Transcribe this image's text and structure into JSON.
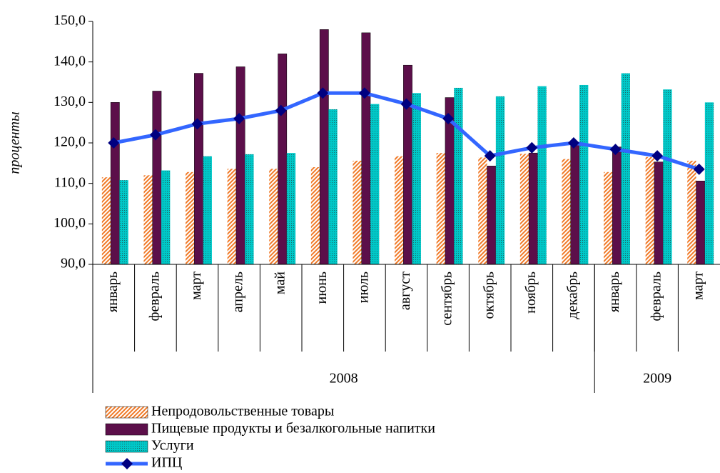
{
  "chart_data": {
    "type": "bar",
    "ylabel": "проценты",
    "categories": [
      "январь",
      "февраль",
      "март",
      "апрель",
      "май",
      "июнь",
      "июль",
      "август",
      "сентябрь",
      "октябрь",
      "ноябрь",
      "декабрь",
      "январь",
      "февраль",
      "март"
    ],
    "year_groups": [
      {
        "name": "2008",
        "span": 12
      },
      {
        "name": "2009",
        "span": 3
      }
    ],
    "series": [
      {
        "name": "Непродовольственные товары",
        "type": "bar",
        "pattern": "hatch",
        "color": "#f07a28",
        "values": [
          111.5,
          112,
          112.8,
          113.6,
          113.6,
          114,
          115.6,
          116.7,
          117.5,
          116.4,
          117.3,
          116,
          112.8,
          116.5,
          115.6
        ]
      },
      {
        "name": "Пищевые продукты и безалкогольные напитки",
        "type": "bar",
        "pattern": "solid",
        "color": "#5c0f4a",
        "values": [
          130,
          132.8,
          137.2,
          138.8,
          142,
          148,
          147.2,
          139.2,
          131.2,
          114.3,
          117.5,
          120,
          119,
          115.3,
          110.6
        ]
      },
      {
        "name": "Услуги",
        "type": "bar",
        "pattern": "dots",
        "color": "#00c8c8",
        "values": [
          110.8,
          113.2,
          116.7,
          117.2,
          117.5,
          128.3,
          129.6,
          132.3,
          133.6,
          131.5,
          134,
          134.3,
          137.2,
          133.2,
          130
        ]
      },
      {
        "name": "ИПЦ",
        "type": "line",
        "color": "#3366ff",
        "marker_color": "#000080",
        "values": [
          120,
          122,
          124.7,
          126,
          128,
          132.3,
          132.3,
          129.6,
          126,
          116.8,
          118.8,
          120,
          118.4,
          116.8,
          113.5
        ]
      }
    ],
    "ylim": [
      90,
      150
    ],
    "yticks": [
      {
        "value": 90,
        "label": "90,0"
      },
      {
        "value": 100,
        "label": "100,0"
      },
      {
        "value": 110,
        "label": "110,0"
      },
      {
        "value": 120,
        "label": "120,0"
      },
      {
        "value": 130,
        "label": "130,0"
      },
      {
        "value": 140,
        "label": "140,0"
      },
      {
        "value": 150,
        "label": "150,0"
      }
    ],
    "grid": false
  }
}
